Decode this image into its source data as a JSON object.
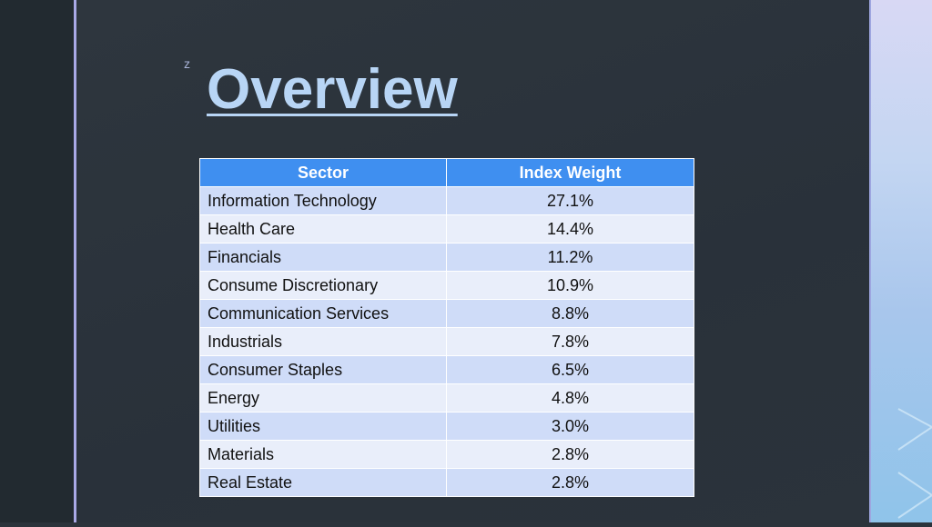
{
  "slide": {
    "marker": "z",
    "title": "Overview"
  },
  "table": {
    "header": [
      "Sector",
      "Index Weight"
    ],
    "rows": [
      [
        "Information Technology",
        "27.1%"
      ],
      [
        "Health Care",
        "14.4%"
      ],
      [
        "Financials",
        "11.2%"
      ],
      [
        "Consume Discretionary",
        "10.9%"
      ],
      [
        "Communication Services",
        "8.8%"
      ],
      [
        "Industrials",
        "7.8%"
      ],
      [
        "Consumer Staples",
        "6.5%"
      ],
      [
        "Energy",
        "4.8%"
      ],
      [
        "Utilities",
        "3.0%"
      ],
      [
        "Materials",
        "2.8%"
      ],
      [
        "Real Estate",
        "2.8%"
      ]
    ]
  }
}
